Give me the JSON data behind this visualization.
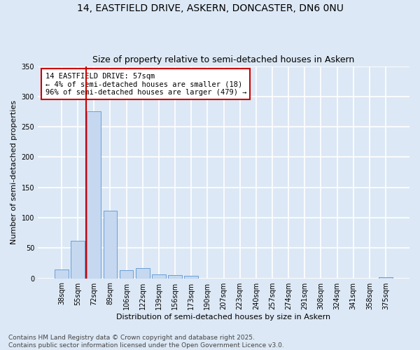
{
  "title_line1": "14, EASTFIELD DRIVE, ASKERN, DONCASTER, DN6 0NU",
  "title_line2": "Size of property relative to semi-detached houses in Askern",
  "xlabel": "Distribution of semi-detached houses by size in Askern",
  "ylabel": "Number of semi-detached properties",
  "categories": [
    "38sqm",
    "55sqm",
    "72sqm",
    "89sqm",
    "106sqm",
    "122sqm",
    "139sqm",
    "156sqm",
    "173sqm",
    "190sqm",
    "207sqm",
    "223sqm",
    "240sqm",
    "257sqm",
    "274sqm",
    "291sqm",
    "308sqm",
    "324sqm",
    "341sqm",
    "358sqm",
    "375sqm"
  ],
  "values": [
    15,
    62,
    275,
    112,
    13,
    17,
    7,
    5,
    4,
    0,
    0,
    0,
    0,
    0,
    0,
    0,
    0,
    0,
    0,
    0,
    2
  ],
  "bar_color": "#c5d8f0",
  "bar_edge_color": "#6a9fd8",
  "bg_color": "#dce8f5",
  "grid_color": "#ffffff",
  "vline_color": "#cc0000",
  "annotation_text": "14 EASTFIELD DRIVE: 57sqm\n← 4% of semi-detached houses are smaller (18)\n96% of semi-detached houses are larger (479) →",
  "annotation_box_color": "#ffffff",
  "annotation_box_edge": "#cc0000",
  "ylim": [
    0,
    350
  ],
  "yticks": [
    0,
    50,
    100,
    150,
    200,
    250,
    300,
    350
  ],
  "footer_line1": "Contains HM Land Registry data © Crown copyright and database right 2025.",
  "footer_line2": "Contains public sector information licensed under the Open Government Licence v3.0.",
  "title_fontsize": 10,
  "subtitle_fontsize": 9,
  "axis_label_fontsize": 8,
  "tick_fontsize": 7,
  "annotation_fontsize": 7.5,
  "footer_fontsize": 6.5
}
